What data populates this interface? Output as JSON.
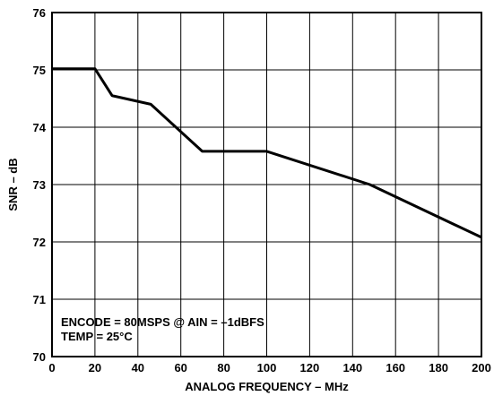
{
  "chart_data": {
    "type": "line",
    "title": "",
    "xlabel": "ANALOG FREQUENCY – MHz",
    "ylabel": "SNR – dB",
    "xlim": [
      0,
      200
    ],
    "ylim": [
      70,
      76
    ],
    "x_ticks": [
      0,
      20,
      40,
      60,
      80,
      100,
      120,
      140,
      160,
      180,
      200
    ],
    "y_ticks": [
      70,
      71,
      72,
      73,
      74,
      75,
      76
    ],
    "grid": true,
    "series": [
      {
        "x": [
          0,
          20,
          28,
          46,
          70,
          100,
          148,
          200
        ],
        "y": [
          75.02,
          75.02,
          74.55,
          74.4,
          73.58,
          73.58,
          73.0,
          72.08
        ]
      }
    ],
    "annotations": [
      "ENCODE = 80MSPS @ AIN = –1dBFS",
      "TEMP = 25°C"
    ],
    "line_color": "#000000"
  }
}
